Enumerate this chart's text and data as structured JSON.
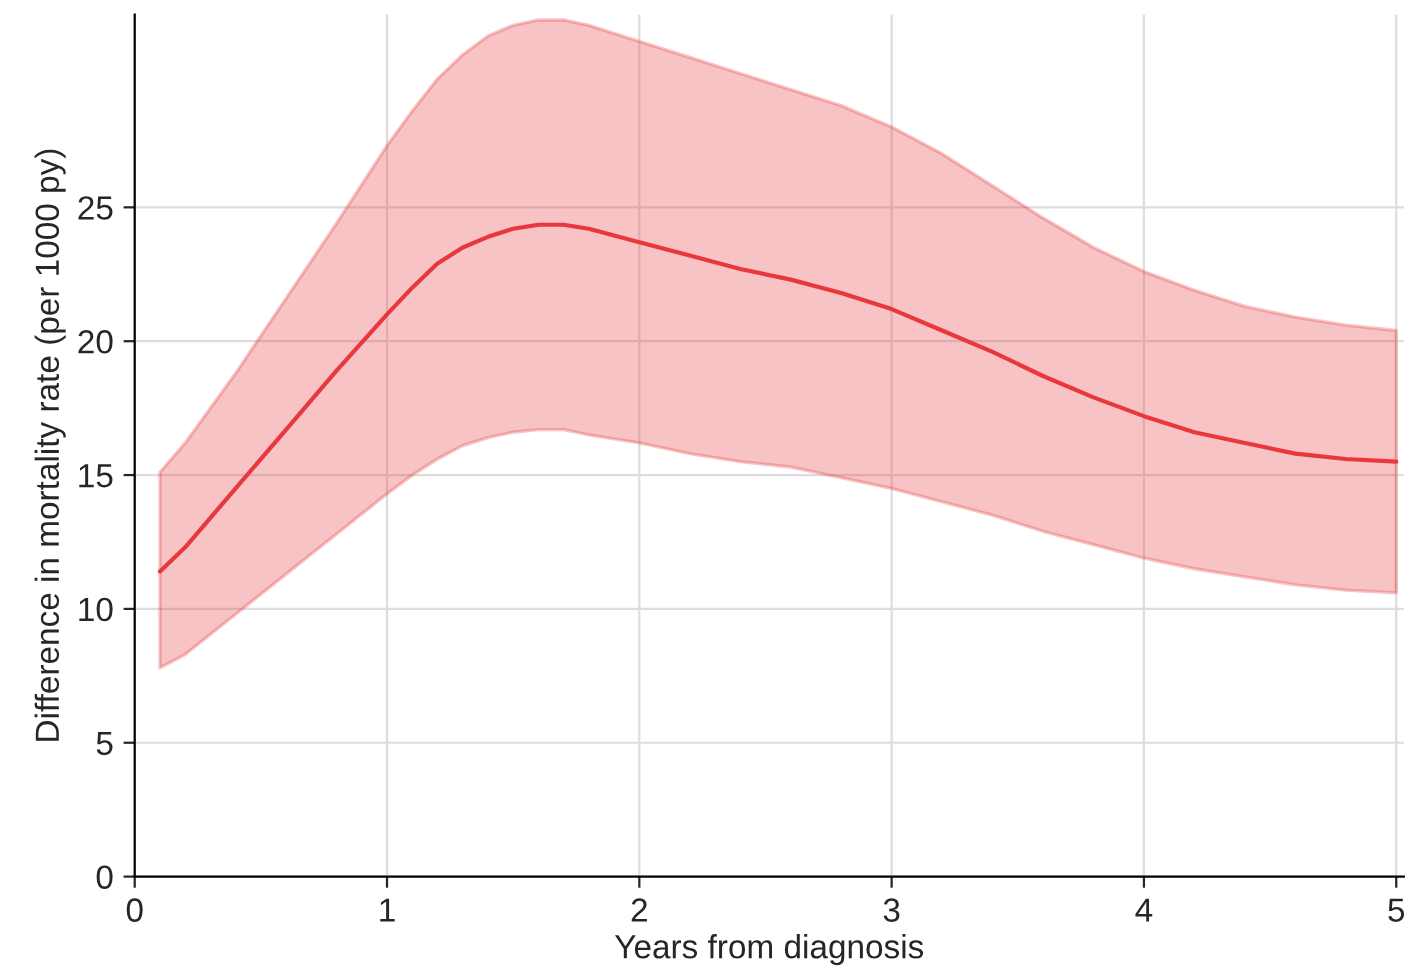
{
  "chart_data": {
    "type": "line",
    "xlabel": "Years from diagnosis",
    "ylabel": "Difference in mortality rate (per 1000 py)",
    "x": [
      0.1,
      0.2,
      0.4,
      0.6,
      0.8,
      1.0,
      1.1,
      1.2,
      1.3,
      1.4,
      1.5,
      1.6,
      1.7,
      1.8,
      2.0,
      2.2,
      2.4,
      2.6,
      2.8,
      3.0,
      3.2,
      3.4,
      3.6,
      3.8,
      4.0,
      4.2,
      4.4,
      4.6,
      4.8,
      5.0
    ],
    "series": [
      {
        "color": "#e8383d",
        "values": [
          11.4,
          12.3,
          14.5,
          16.7,
          18.9,
          21.0,
          22.0,
          22.9,
          23.5,
          23.9,
          24.2,
          24.35,
          24.35,
          24.2,
          23.7,
          23.2,
          22.7,
          22.3,
          21.8,
          21.2,
          20.4,
          19.6,
          18.7,
          17.9,
          17.2,
          16.6,
          16.2,
          15.8,
          15.6,
          15.5
        ],
        "upper": [
          15.1,
          16.2,
          18.8,
          21.6,
          24.4,
          27.3,
          28.6,
          29.8,
          30.7,
          31.4,
          31.8,
          32.0,
          32.0,
          31.8,
          31.2,
          30.6,
          30.0,
          29.4,
          28.8,
          28.0,
          27.0,
          25.8,
          24.6,
          23.5,
          22.6,
          21.9,
          21.3,
          20.9,
          20.6,
          20.4
        ],
        "lower": [
          7.8,
          8.3,
          9.8,
          11.3,
          12.8,
          14.3,
          15.0,
          15.6,
          16.1,
          16.4,
          16.6,
          16.7,
          16.7,
          16.5,
          16.2,
          15.8,
          15.5,
          15.3,
          14.9,
          14.5,
          14.0,
          13.5,
          12.9,
          12.4,
          11.9,
          11.5,
          11.2,
          10.9,
          10.7,
          10.6
        ]
      }
    ],
    "xlim": [
      0,
      5.03
    ],
    "ylim": [
      0,
      32.2
    ],
    "xticks": [
      0,
      1,
      2,
      3,
      4,
      5
    ],
    "yticks": [
      0,
      5,
      10,
      15,
      20,
      25
    ],
    "grid": true,
    "legend": false
  }
}
